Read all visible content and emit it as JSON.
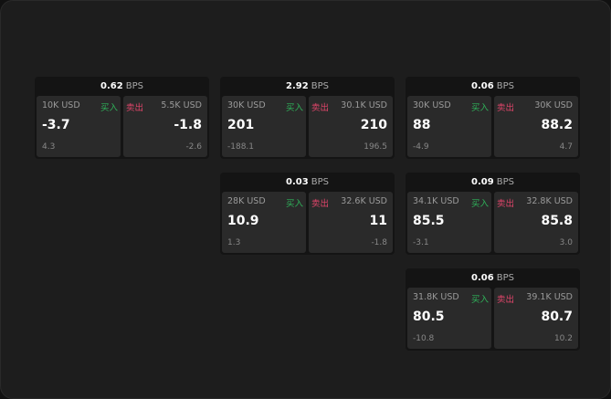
{
  "labels": {
    "buy": "买入",
    "sell": "卖出",
    "unit": "BPS"
  },
  "colors": {
    "buy": "#2fb35a",
    "sell": "#e0456a"
  },
  "panels": [
    {
      "spread": "0.62",
      "bid_size": "10K USD",
      "bid": "-3.7",
      "bid_change": "4.3",
      "ask_size": "5.5K USD",
      "ask": "-1.8",
      "ask_change": "-2.6"
    },
    {
      "spread": "2.92",
      "bid_size": "30K USD",
      "bid": "201",
      "bid_change": "-188.1",
      "ask_size": "30.1K USD",
      "ask": "210",
      "ask_change": "196.5"
    },
    {
      "spread": "0.06",
      "bid_size": "30K USD",
      "bid": "88",
      "bid_change": "-4.9",
      "ask_size": "30K USD",
      "ask": "88.2",
      "ask_change": "4.7"
    },
    {
      "spread": "0.03",
      "bid_size": "28K USD",
      "bid": "10.9",
      "bid_change": "1.3",
      "ask_size": "32.6K USD",
      "ask": "11",
      "ask_change": "-1.8"
    },
    {
      "spread": "0.09",
      "bid_size": "34.1K USD",
      "bid": "85.5",
      "bid_change": "-3.1",
      "ask_size": "32.8K USD",
      "ask": "85.8",
      "ask_change": "3.0"
    },
    {
      "spread": "0.06",
      "bid_size": "31.8K USD",
      "bid": "80.5",
      "bid_change": "-10.8",
      "ask_size": "39.1K USD",
      "ask": "80.7",
      "ask_change": "10.2"
    }
  ]
}
